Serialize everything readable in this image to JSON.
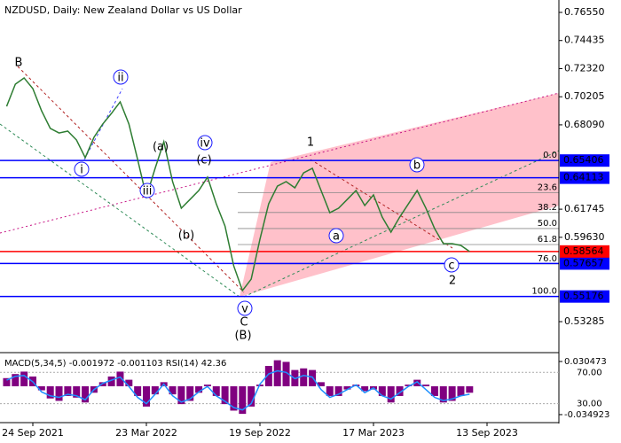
{
  "chart_data": [
    {
      "type": "line",
      "title": "NZDUSD, Daily:  New Zealand Dollar vs US Dollar",
      "categories": [
        null,
        null,
        null,
        "24 Sep 2021",
        null,
        null,
        null,
        null,
        null,
        null,
        null,
        null,
        null,
        null,
        null,
        null,
        "23 Mar 2022",
        null,
        null,
        null,
        null,
        null,
        null,
        null,
        null,
        null,
        null,
        null,
        null,
        "19 Sep 2022",
        null,
        null,
        null,
        null,
        null,
        null,
        null,
        null,
        null,
        null,
        null,
        null,
        "17 Mar 2023",
        null,
        null,
        null,
        null,
        null,
        null,
        null,
        null,
        null,
        null,
        null,
        null,
        "13 Sep 2023"
      ],
      "values": [
        0.6948,
        0.7115,
        0.7162,
        0.7082,
        0.6915,
        0.6782,
        0.6748,
        0.6762,
        0.6695,
        0.6562,
        0.6715,
        0.6815,
        0.6895,
        0.6982,
        0.6815,
        0.6548,
        0.6268,
        0.6482,
        0.6682,
        0.6382,
        0.6182,
        0.6248,
        0.6315,
        0.6415,
        0.6215,
        0.6048,
        0.5748,
        0.5562,
        0.5648,
        0.5948,
        0.6215,
        0.6348,
        0.6382,
        0.6335,
        0.6448,
        0.6482,
        0.6315,
        0.6148,
        0.6182,
        0.6248,
        0.6315,
        0.6202,
        0.6282,
        0.6115,
        0.6002,
        0.6115,
        0.6215,
        0.6315,
        0.6182,
        0.6028,
        0.5915,
        0.5915,
        0.5902,
        0.58564,
        null,
        null
      ],
      "color": "#2e7d32",
      "ylim": [
        0.5102,
        0.7715
      ],
      "yticks": [
        {
          "value": 0.7655,
          "label": "0.76550"
        },
        0.74435,
        {
          "value": 0.7232,
          "label": "0.72320"
        },
        0.70205,
        {
          "value": 0.6809,
          "label": "0.68090"
        },
        0.61745,
        {
          "value": 0.5963,
          "label": "0.59630"
        },
        0.53285
      ],
      "levels": [
        0.65406,
        0.64113,
        0.57657,
        0.55176
      ],
      "level_color": "#0000ff",
      "last_price": 0.58564,
      "last_price_color": "#ff0000",
      "fib_levels": [
        {
          "value": 0,
          "label": "0.0"
        },
        23.6,
        38.2,
        {
          "value": 50,
          "label": "50.0"
        },
        61.8,
        {
          "value": 76,
          "label": "76.0"
        },
        {
          "value": 100,
          "label": "100.0"
        }
      ],
      "annotations": [
        "B",
        "ii",
        "(a)",
        "iv",
        "(c)",
        "i",
        "iii",
        "(b)",
        "v",
        "C",
        "(B)",
        "1",
        "a",
        "b",
        "c",
        "2"
      ]
    },
    {
      "type": "macd",
      "title": "MACD(5,34,5) -0.001972 -0.001103 RSI(14) 42.36",
      "values": [
        0.01,
        0.015,
        0.018,
        0.012,
        -0.005,
        -0.015,
        -0.018,
        -0.012,
        -0.014,
        -0.02,
        -0.008,
        0.005,
        0.012,
        0.018,
        0.008,
        -0.012,
        -0.025,
        -0.01,
        0.005,
        -0.01,
        -0.022,
        -0.018,
        -0.008,
        0.002,
        -0.012,
        -0.022,
        -0.03,
        -0.034,
        -0.025,
        0.002,
        0.025,
        0.032,
        0.03,
        0.02,
        0.022,
        0.02,
        0.005,
        -0.012,
        -0.012,
        -0.004,
        0.002,
        -0.006,
        -0.004,
        -0.012,
        -0.02,
        -0.012,
        0.002,
        0.008,
        0.002,
        -0.012,
        -0.02,
        -0.018,
        -0.012,
        -0.008
      ],
      "color": "#800080",
      "ylim": [
        -0.0426,
        0.0392
      ],
      "yticks": [
        0.030473,
        -0.034923
      ],
      "series": [
        {
          "values": [
            60,
            65,
            66,
            58,
            45,
            40,
            38,
            42,
            40,
            35,
            48,
            56,
            60,
            64,
            52,
            38,
            30,
            42,
            55,
            40,
            32,
            36,
            45,
            52,
            40,
            33,
            25,
            22,
            30,
            55,
            68,
            72,
            70,
            62,
            66,
            64,
            48,
            38,
            42,
            48,
            54,
            44,
            50,
            40,
            36,
            44,
            52,
            58,
            48,
            38,
            34,
            36,
            40,
            42
          ],
          "color": "#1e90ff",
          "axis": "y2"
        }
      ],
      "y2lim": [
        8,
        93
      ],
      "y2ticks": [
        {
          "value": 70,
          "label": "70.00"
        },
        {
          "value": 30,
          "label": "30.00"
        }
      ]
    }
  ]
}
